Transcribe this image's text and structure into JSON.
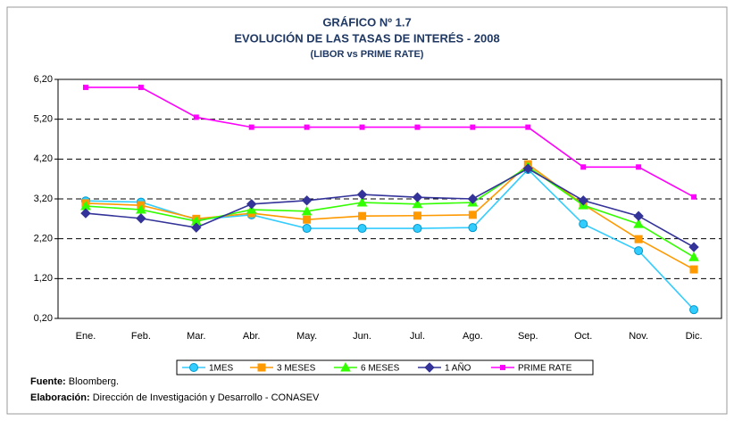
{
  "chart_data": {
    "type": "line",
    "title": "GRÁFICO Nº 1.7",
    "subtitle": "EVOLUCIÓN DE LAS TASAS DE INTERÉS - 2008",
    "subtitle2": "(LIBOR vs PRIME RATE)",
    "categories": [
      "Ene.",
      "Feb.",
      "Mar.",
      "Abr.",
      "May.",
      "Jun.",
      "Jul.",
      "Ago.",
      "Sep.",
      "Oct.",
      "Nov.",
      "Dic."
    ],
    "series": [
      {
        "name": "1MES",
        "color": "#33ccff",
        "marker": "circle",
        "values": [
          3.15,
          3.12,
          2.68,
          2.8,
          2.46,
          2.46,
          2.46,
          2.48,
          3.94,
          2.57,
          1.9,
          0.42
        ]
      },
      {
        "name": "3 MESES",
        "color": "#ff9900",
        "marker": "square",
        "values": [
          3.09,
          3.04,
          2.7,
          2.84,
          2.68,
          2.77,
          2.78,
          2.8,
          4.07,
          3.06,
          2.19,
          1.43
        ]
      },
      {
        "name": "6 MESES",
        "color": "#33ff00",
        "marker": "triangle",
        "values": [
          3.02,
          2.93,
          2.64,
          2.93,
          2.89,
          3.11,
          3.07,
          3.11,
          4.01,
          3.04,
          2.57,
          1.74
        ]
      },
      {
        "name": "1 AÑO",
        "color": "#333399",
        "marker": "diamond",
        "values": [
          2.84,
          2.71,
          2.48,
          3.07,
          3.16,
          3.31,
          3.24,
          3.2,
          3.96,
          3.16,
          2.77,
          1.99
        ]
      },
      {
        "name": "PRIME RATE",
        "color": "#ff00ff",
        "marker": "smallsquare",
        "values": [
          6.0,
          6.0,
          5.25,
          5.0,
          5.0,
          5.0,
          5.0,
          5.0,
          5.0,
          4.0,
          4.0,
          3.25
        ]
      }
    ],
    "ylim": [
      0.2,
      6.2
    ],
    "yticks": [
      {
        "value": 0.2,
        "label": "0,20"
      },
      {
        "value": 1.2,
        "label": "1,20"
      },
      {
        "value": 2.2,
        "label": "2,20"
      },
      {
        "value": 3.2,
        "label": "3,20"
      },
      {
        "value": 4.2,
        "label": "4,20"
      },
      {
        "value": 5.2,
        "label": "5,20"
      },
      {
        "value": 6.2,
        "label": "6,20"
      }
    ],
    "grid": true,
    "legend": "bottom",
    "source_label": "Fuente:",
    "source": "Bloomberg.",
    "credit_label": "Elaboración:",
    "credit": "Dirección de Investigación y Desarrollo - CONASEV"
  }
}
